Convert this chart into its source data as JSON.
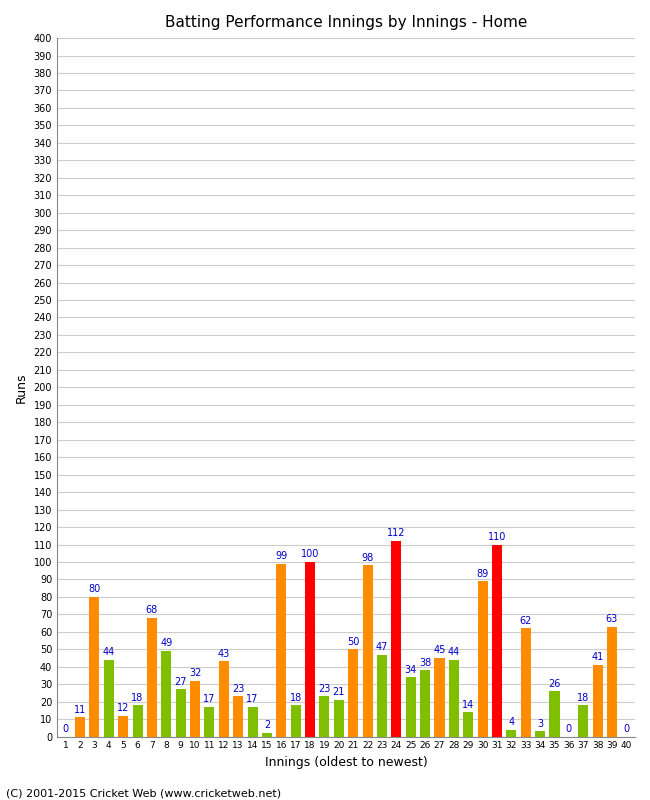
{
  "title": "Batting Performance Innings by Innings - Home",
  "xlabel": "Innings (oldest to newest)",
  "ylabel": "Runs",
  "footer": "(C) 2001-2015 Cricket Web (www.cricketweb.net)",
  "ylim": [
    0,
    400
  ],
  "yticks": [
    0,
    10,
    20,
    30,
    40,
    50,
    60,
    70,
    80,
    90,
    100,
    110,
    120,
    130,
    140,
    150,
    160,
    170,
    180,
    190,
    200,
    210,
    220,
    230,
    240,
    250,
    260,
    270,
    280,
    290,
    300,
    310,
    320,
    330,
    340,
    350,
    360,
    370,
    380,
    390,
    400
  ],
  "innings": [
    1,
    2,
    3,
    4,
    5,
    6,
    7,
    8,
    9,
    10,
    11,
    12,
    13,
    14,
    15,
    16,
    17,
    18,
    19,
    20,
    21,
    22,
    23,
    24,
    25,
    26,
    27,
    28,
    29,
    30,
    31,
    32,
    33,
    34,
    35,
    36,
    37,
    38,
    39,
    40
  ],
  "values": [
    0,
    11,
    80,
    44,
    12,
    18,
    68,
    49,
    27,
    32,
    17,
    43,
    23,
    17,
    2,
    99,
    18,
    100,
    23,
    21,
    50,
    98,
    47,
    112,
    34,
    38,
    45,
    44,
    14,
    89,
    110,
    4,
    62,
    3,
    26,
    0,
    18,
    41,
    63,
    0
  ],
  "bar_colors": [
    "#7FBF00",
    "#FF8C00",
    "#FF8C00",
    "#7FBF00",
    "#FF8C00",
    "#7FBF00",
    "#FF8C00",
    "#7FBF00",
    "#7FBF00",
    "#FF8C00",
    "#7FBF00",
    "#FF8C00",
    "#FF8C00",
    "#7FBF00",
    "#7FBF00",
    "#FF8C00",
    "#7FBF00",
    "#FF0000",
    "#7FBF00",
    "#7FBF00",
    "#FF8C00",
    "#FF8C00",
    "#7FBF00",
    "#FF0000",
    "#7FBF00",
    "#7FBF00",
    "#FF8C00",
    "#7FBF00",
    "#7FBF00",
    "#FF8C00",
    "#FF0000",
    "#7FBF00",
    "#FF8C00",
    "#7FBF00",
    "#7FBF00",
    "#7FBF00",
    "#7FBF00",
    "#FF8C00",
    "#FF8C00",
    "#7FBF00"
  ],
  "color_label": "#0000CC",
  "background_color": "#FFFFFF",
  "grid_color": "#CCCCCC",
  "title_fontsize": 11,
  "label_fontsize": 7,
  "axis_fontsize": 7,
  "footer_fontsize": 8
}
